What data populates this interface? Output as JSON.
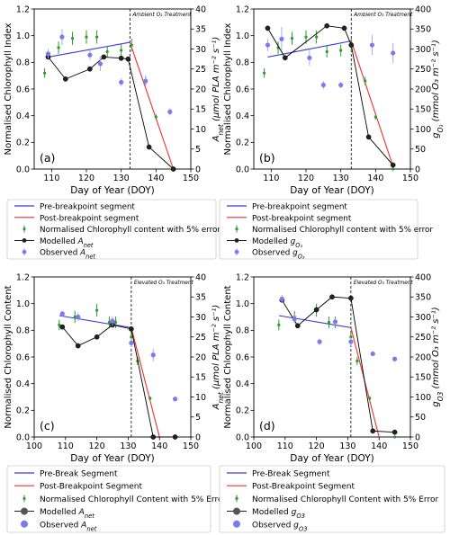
{
  "chart_data": [
    {
      "type": "line",
      "panel_label": "(a)",
      "treatment_label": "Ambient O₃ Treatment",
      "xlabel": "Day of Year (DOY)",
      "ylabel_left": "Normalised Chlorophyll Index",
      "ylabel_right": "A_net (μmol PLA m⁻² s⁻¹)",
      "xlim": [
        105,
        150
      ],
      "xticks": [
        110,
        120,
        130,
        140,
        150
      ],
      "ylim_left": [
        0,
        1.2
      ],
      "yticks_left": [
        "0.0",
        "0.2",
        "0.4",
        "0.6",
        "0.8",
        "1.0",
        "1.2"
      ],
      "ylim_right": [
        0,
        40
      ],
      "yticks_right": [
        "0",
        "5",
        "10",
        "15",
        "20",
        "25",
        "30",
        "35",
        "40"
      ],
      "breakpoint_x": 132.5,
      "series": [
        {
          "name": "Pre-breakpoint segment",
          "color": "#3b3bd6",
          "axis": "left",
          "x": [
            109,
            132.5
          ],
          "y": [
            0.84,
            0.95
          ]
        },
        {
          "name": "Post-breakpoint segment",
          "color": "#e6332a",
          "axis": "left",
          "x": [
            132.5,
            145
          ],
          "y": [
            0.95,
            0.0
          ]
        },
        {
          "name": "Normalised Chlorophyll content with 5% error",
          "color": "#2e9a2e",
          "axis": "left",
          "marker": "errorbar",
          "x": [
            108,
            112,
            116,
            120,
            123,
            126,
            130,
            133,
            137,
            140,
            145
          ],
          "y": [
            0.72,
            0.91,
            0.98,
            0.99,
            0.99,
            0.88,
            0.89,
            0.93,
            0.66,
            0.39,
            0.0
          ],
          "err": [
            0.036,
            0.046,
            0.049,
            0.05,
            0.05,
            0.044,
            0.045,
            0.047,
            0.033,
            0.02,
            0.01
          ]
        },
        {
          "name": "Modelled A_net",
          "color": "#000000",
          "axis": "right",
          "marker": "circle-line",
          "x": [
            109,
            114,
            121,
            125,
            130,
            132,
            138,
            145
          ],
          "y": [
            28,
            22.5,
            25,
            28,
            27.7,
            27.5,
            5.5,
            0
          ]
        },
        {
          "name": "Observed A_net",
          "color": "#7b7bf0",
          "axis": "right",
          "marker": "errorbar-circle",
          "x": [
            109,
            113,
            121,
            124,
            130,
            137,
            144
          ],
          "y": [
            28.8,
            33,
            28.5,
            26.3,
            21.7,
            22,
            14.3
          ],
          "err": [
            1.2,
            2.0,
            1.2,
            1.8,
            1.0,
            1.4,
            0.9
          ]
        }
      ]
    },
    {
      "type": "line",
      "panel_label": "(b)",
      "treatment_label": "Ambient O₃ Treatment",
      "xlabel": "Day of Year (DOY)",
      "ylabel_left": "Normalised Chlorophyll Index",
      "ylabel_right": "g_O₃ (mmol O₃ m⁻² s⁻¹)",
      "xlim": [
        105,
        150
      ],
      "xticks": [
        110,
        120,
        130,
        140,
        150
      ],
      "ylim_left": [
        0,
        1.2
      ],
      "yticks_left": [
        "0.0",
        "0.2",
        "0.4",
        "0.6",
        "0.8",
        "1.0",
        "1.2"
      ],
      "ylim_right": [
        0,
        400
      ],
      "yticks_right": [
        "0",
        "50",
        "100",
        "150",
        "200",
        "250",
        "300",
        "350",
        "400"
      ],
      "breakpoint_x": 133,
      "series": [
        {
          "name": "Pre-breakpoint segment",
          "color": "#3b3bd6",
          "axis": "left",
          "x": [
            109,
            133
          ],
          "y": [
            0.84,
            0.96
          ]
        },
        {
          "name": "Post-breakpoint segment",
          "color": "#e6332a",
          "axis": "left",
          "x": [
            133,
            145
          ],
          "y": [
            0.96,
            0.02
          ]
        },
        {
          "name": "Normalised Chlorophyll content with 5% error",
          "color": "#2e9a2e",
          "axis": "left",
          "marker": "errorbar",
          "x": [
            108,
            112,
            116,
            120,
            123,
            126,
            130,
            133,
            137,
            140,
            145
          ],
          "y": [
            0.72,
            0.91,
            0.98,
            0.99,
            0.99,
            0.88,
            0.89,
            0.93,
            0.66,
            0.39,
            0.0
          ],
          "err": [
            0.036,
            0.046,
            0.049,
            0.05,
            0.05,
            0.044,
            0.045,
            0.047,
            0.033,
            0.02,
            0.01
          ]
        },
        {
          "name": "Modelled g_O₃",
          "color": "#000000",
          "axis": "right",
          "marker": "circle-line",
          "x": [
            109,
            114,
            120,
            126,
            131,
            133,
            138,
            145
          ],
          "y": [
            352,
            278,
            318,
            358,
            352,
            310,
            80,
            10
          ],
          "marker_x": [
            109,
            114,
            126,
            131,
            133,
            138,
            145
          ]
        },
        {
          "name": "Observed g_O₃",
          "color": "#7b7bf0",
          "axis": "right",
          "marker": "errorbar-circle",
          "x": [
            109,
            113,
            121,
            125,
            130,
            139,
            145
          ],
          "y": [
            310,
            325,
            278,
            210,
            210,
            310,
            290
          ],
          "err": [
            15,
            30,
            20,
            10,
            8,
            25,
            25
          ]
        }
      ]
    },
    {
      "type": "line",
      "panel_label": "(c)",
      "treatment_label": "Elevated O₃ Treatment",
      "xlabel": "Day of Year (DOY)",
      "ylabel_left": "Normalised Chlorophyll Content",
      "ylabel_right": "A_net (μmol PLA m⁻² s⁻¹)",
      "xlim": [
        100,
        150
      ],
      "xticks": [
        100,
        110,
        120,
        130,
        140,
        150
      ],
      "ylim_left": [
        0,
        1.2
      ],
      "yticks_left": [
        "0.0",
        "0.2",
        "0.4",
        "0.6",
        "0.8",
        "1.0",
        "1.2"
      ],
      "ylim_right": [
        0,
        40
      ],
      "yticks_right": [
        "0",
        "5",
        "10",
        "15",
        "20",
        "25",
        "30",
        "35",
        "40"
      ],
      "breakpoint_x": 131,
      "series": [
        {
          "name": "Pre-Break Segment",
          "color": "#3b3bd6",
          "axis": "left",
          "x": [
            108,
            131
          ],
          "y": [
            0.91,
            0.82
          ]
        },
        {
          "name": "Post-Breakpoint Segment",
          "color": "#e6332a",
          "axis": "left",
          "x": [
            131,
            140
          ],
          "y": [
            0.82,
            0.0
          ]
        },
        {
          "name": "Normalised Chlorophyll Content with 5% Error",
          "color": "#2e9a2e",
          "axis": "left",
          "marker": "errorbar",
          "x": [
            108,
            113,
            120,
            124,
            126,
            131,
            133,
            137,
            145
          ],
          "y": [
            0.84,
            0.9,
            0.95,
            0.86,
            0.86,
            0.75,
            0.57,
            0.29,
            0.0
          ],
          "err": [
            0.04,
            0.045,
            0.048,
            0.043,
            0.043,
            0.04,
            0.03,
            0.015,
            0.01
          ]
        },
        {
          "name": "Modelled A_net",
          "color": "#000000",
          "axis": "right",
          "marker": "circle-line",
          "x": [
            109,
            114,
            120,
            125,
            131,
            138,
            145
          ],
          "y": [
            27.5,
            22.8,
            25,
            28,
            27,
            0,
            0
          ]
        },
        {
          "name": "Observed A_net",
          "color": "#7b7bf0",
          "axis": "right",
          "marker": "errorbar-circle",
          "x": [
            109,
            114,
            125,
            131,
            138,
            145
          ],
          "y": [
            30.8,
            30,
            29,
            23.5,
            20.5,
            9.5
          ],
          "err": [
            0.8,
            1.0,
            1.2,
            1.0,
            1.6,
            0.5
          ]
        }
      ]
    },
    {
      "type": "line",
      "panel_label": "(d)",
      "treatment_label": "Elevated O₃ Treatment",
      "xlabel": "Day of Year (DOY)",
      "ylabel_left": "Normalised Chlorophyll Content",
      "ylabel_right": "g_O3 (mmol O₃ m⁻² s⁻¹)",
      "xlim": [
        100,
        150
      ],
      "xticks": [
        100,
        110,
        120,
        130,
        140,
        150
      ],
      "ylim_left": [
        0,
        1.2
      ],
      "yticks_left": [
        "0.0",
        "0.2",
        "0.4",
        "0.6",
        "0.8",
        "1.0",
        "1.2"
      ],
      "ylim_right": [
        0,
        400
      ],
      "yticks_right": [
        "0",
        "50",
        "100",
        "150",
        "200",
        "250",
        "300",
        "350",
        "400"
      ],
      "breakpoint_x": 131,
      "series": [
        {
          "name": "Pre-Break Segment",
          "color": "#3b3bd6",
          "axis": "left",
          "x": [
            108,
            131
          ],
          "y": [
            0.91,
            0.82
          ]
        },
        {
          "name": "Post-Breakpoint Segment",
          "color": "#e6332a",
          "axis": "left",
          "x": [
            131,
            140
          ],
          "y": [
            0.82,
            0.0
          ]
        },
        {
          "name": "Normalised Chlorophyll Content with 5% Error",
          "color": "#2e9a2e",
          "axis": "left",
          "marker": "errorbar",
          "x": [
            108,
            113,
            120,
            124,
            126,
            131,
            133,
            137,
            145
          ],
          "y": [
            0.84,
            0.9,
            0.95,
            0.86,
            0.86,
            0.75,
            0.57,
            0.29,
            0.0
          ],
          "err": [
            0.04,
            0.045,
            0.048,
            0.043,
            0.043,
            0.04,
            0.03,
            0.015,
            0.01
          ]
        },
        {
          "name": "Modelled g_O3",
          "color": "#000000",
          "axis": "right",
          "marker": "circle-line",
          "x": [
            109,
            114,
            120,
            125,
            131,
            138,
            145
          ],
          "y": [
            342,
            278,
            318,
            350,
            347,
            15,
            12
          ]
        },
        {
          "name": "Observed g_O3",
          "color": "#7b7bf0",
          "axis": "right",
          "marker": "errorbar-circle",
          "x": [
            109,
            113,
            121,
            126,
            131,
            138,
            145
          ],
          "y": [
            345,
            295,
            238,
            288,
            238,
            208,
            195
          ],
          "err": [
            10,
            10,
            8,
            8,
            10,
            6,
            5
          ]
        }
      ]
    }
  ],
  "legends": [
    {
      "entries": [
        {
          "style": "line",
          "color": "#3b3bd6",
          "label": "Pre-breakpoint segment"
        },
        {
          "style": "line",
          "color": "#e6332a",
          "label": "Post-breakpoint segment"
        },
        {
          "style": "errorbar",
          "color": "#2e9a2e",
          "label": "Normalised Chlorophyll content with 5% error"
        },
        {
          "style": "circle-line",
          "color": "#000000",
          "label": "Modelled A_net"
        },
        {
          "style": "errorbar-circle",
          "color": "#7b7bf0",
          "label": "Observed A_net"
        }
      ]
    },
    {
      "entries": [
        {
          "style": "line",
          "color": "#3b3bd6",
          "label": "Pre-breakpoint segment"
        },
        {
          "style": "line",
          "color": "#e6332a",
          "label": "Post-breakpoint segment"
        },
        {
          "style": "errorbar",
          "color": "#2e9a2e",
          "label": "Normalised Chlorophyll content with 5% error"
        },
        {
          "style": "circle-line",
          "color": "#000000",
          "label": "Modelled g_O₃"
        },
        {
          "style": "errorbar-circle",
          "color": "#7b7bf0",
          "label": "Observed g_O₃"
        }
      ]
    },
    {
      "entries": [
        {
          "style": "line",
          "color": "#3b3bd6",
          "label": "Pre-Break Segment"
        },
        {
          "style": "line",
          "color": "#e6332a",
          "label": "Post-Breakpoint Segment"
        },
        {
          "style": "errorbar",
          "color": "#2e9a2e",
          "label": "Normalised Chlorophyll Content with 5% Error"
        },
        {
          "style": "circle-line-big",
          "color": "#555555",
          "label": "Modelled g_O3"
        },
        {
          "style": "circle-big",
          "color": "#7b7bf0",
          "label": "Observed g_O3"
        }
      ]
    }
  ],
  "legend_c_entries": [
    {
      "style": "circle-line-big",
      "color": "#555555",
      "label": "Modelled A_net"
    },
    {
      "style": "circle-big",
      "color": "#7b7bf0",
      "label": "Observed A_net"
    }
  ]
}
